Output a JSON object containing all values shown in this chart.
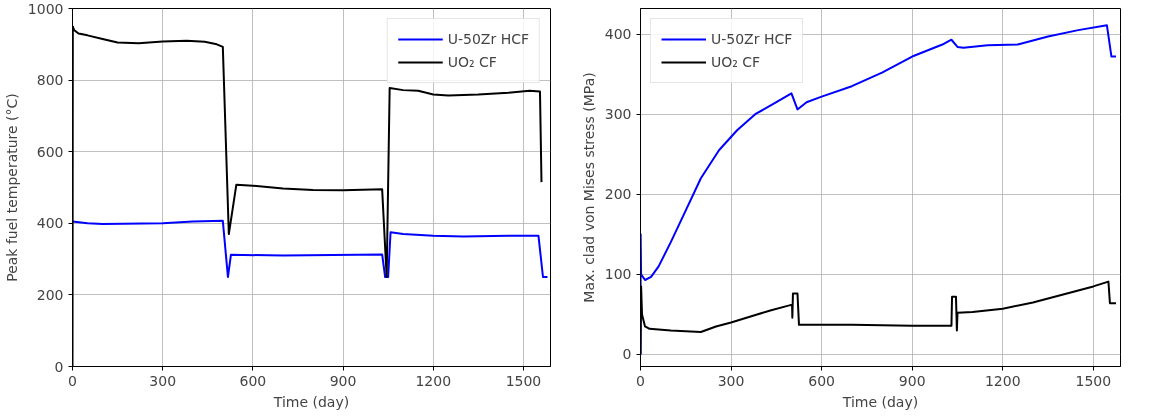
{
  "chart_data": [
    {
      "type": "line",
      "xlabel": "Time (day)",
      "ylabel": "Peak fuel temperature (°C)",
      "xlim": [
        0,
        1590
      ],
      "ylim": [
        0,
        1000
      ],
      "xticks": [
        0,
        300,
        600,
        900,
        1200,
        1500
      ],
      "yticks": [
        0,
        200,
        400,
        600,
        800,
        1000
      ],
      "grid": true,
      "legend": "top right",
      "series": [
        {
          "name": "U-50Zr HCF",
          "color": "#0000ff",
          "x": [
            0,
            50,
            100,
            300,
            400,
            500,
            517,
            527,
            700,
            1030,
            1040,
            1050,
            1058,
            1100,
            1200,
            1300,
            1450,
            1550,
            1565,
            1580
          ],
          "values": [
            405,
            400,
            398,
            400,
            405,
            407,
            250,
            312,
            310,
            313,
            250,
            250,
            375,
            370,
            365,
            363,
            365,
            365,
            250,
            250
          ]
        },
        {
          "name": "UO₂ CF",
          "color": "#000000",
          "x": [
            0,
            1,
            5,
            20,
            50,
            100,
            150,
            220,
            300,
            380,
            440,
            480,
            500,
            520,
            545,
            600,
            700,
            800,
            900,
            1030,
            1045,
            1055,
            1100,
            1150,
            1200,
            1250,
            1350,
            1450,
            1520,
            1555,
            1560
          ],
          "values": [
            0,
            950,
            940,
            930,
            925,
            915,
            905,
            903,
            908,
            910,
            907,
            900,
            893,
            370,
            508,
            505,
            497,
            493,
            492,
            495,
            250,
            778,
            772,
            770,
            760,
            757,
            760,
            765,
            770,
            768,
            515
          ]
        }
      ]
    },
    {
      "type": "line",
      "xlabel": "Time (day)",
      "ylabel": "Max. clad von Mises stress (MPa)",
      "xlim": [
        0,
        1590
      ],
      "ylim": [
        -15,
        432
      ],
      "xticks": [
        0,
        300,
        600,
        900,
        1200,
        1500
      ],
      "yticks": [
        0,
        100,
        200,
        300,
        400
      ],
      "grid": true,
      "legend": "top left",
      "series": [
        {
          "name": "U-50Zr HCF",
          "color": "#0000ff",
          "x": [
            0,
            0.5,
            2,
            15,
            35,
            60,
            100,
            150,
            200,
            260,
            320,
            380,
            450,
            500,
            520,
            550,
            600,
            700,
            800,
            900,
            1000,
            1030,
            1050,
            1070,
            1150,
            1250,
            1350,
            1450,
            1545,
            1560,
            1575
          ],
          "values": [
            0,
            150,
            100,
            93,
            97,
            110,
            140,
            180,
            220,
            255,
            280,
            300,
            315,
            326,
            306,
            315,
            322,
            335,
            352,
            372,
            387,
            393,
            384,
            383,
            386,
            387,
            397,
            405,
            411,
            372,
            372
          ]
        },
        {
          "name": "UO₂ CF",
          "color": "#000000",
          "x": [
            0,
            2,
            5,
            15,
            30,
            100,
            200,
            250,
            300,
            370,
            430,
            490,
            502,
            503,
            505,
            520,
            525,
            700,
            900,
            1030,
            1032,
            1045,
            1048,
            1050,
            1100,
            1200,
            1300,
            1400,
            1500,
            1550,
            1555,
            1575
          ],
          "values": [
            0,
            85,
            50,
            35,
            32,
            30,
            28,
            35,
            40,
            48,
            55,
            61,
            62,
            46,
            76,
            76,
            37,
            37,
            36,
            36,
            72,
            72,
            30,
            52,
            53,
            57,
            65,
            75,
            85,
            91,
            64,
            64
          ]
        }
      ]
    }
  ]
}
